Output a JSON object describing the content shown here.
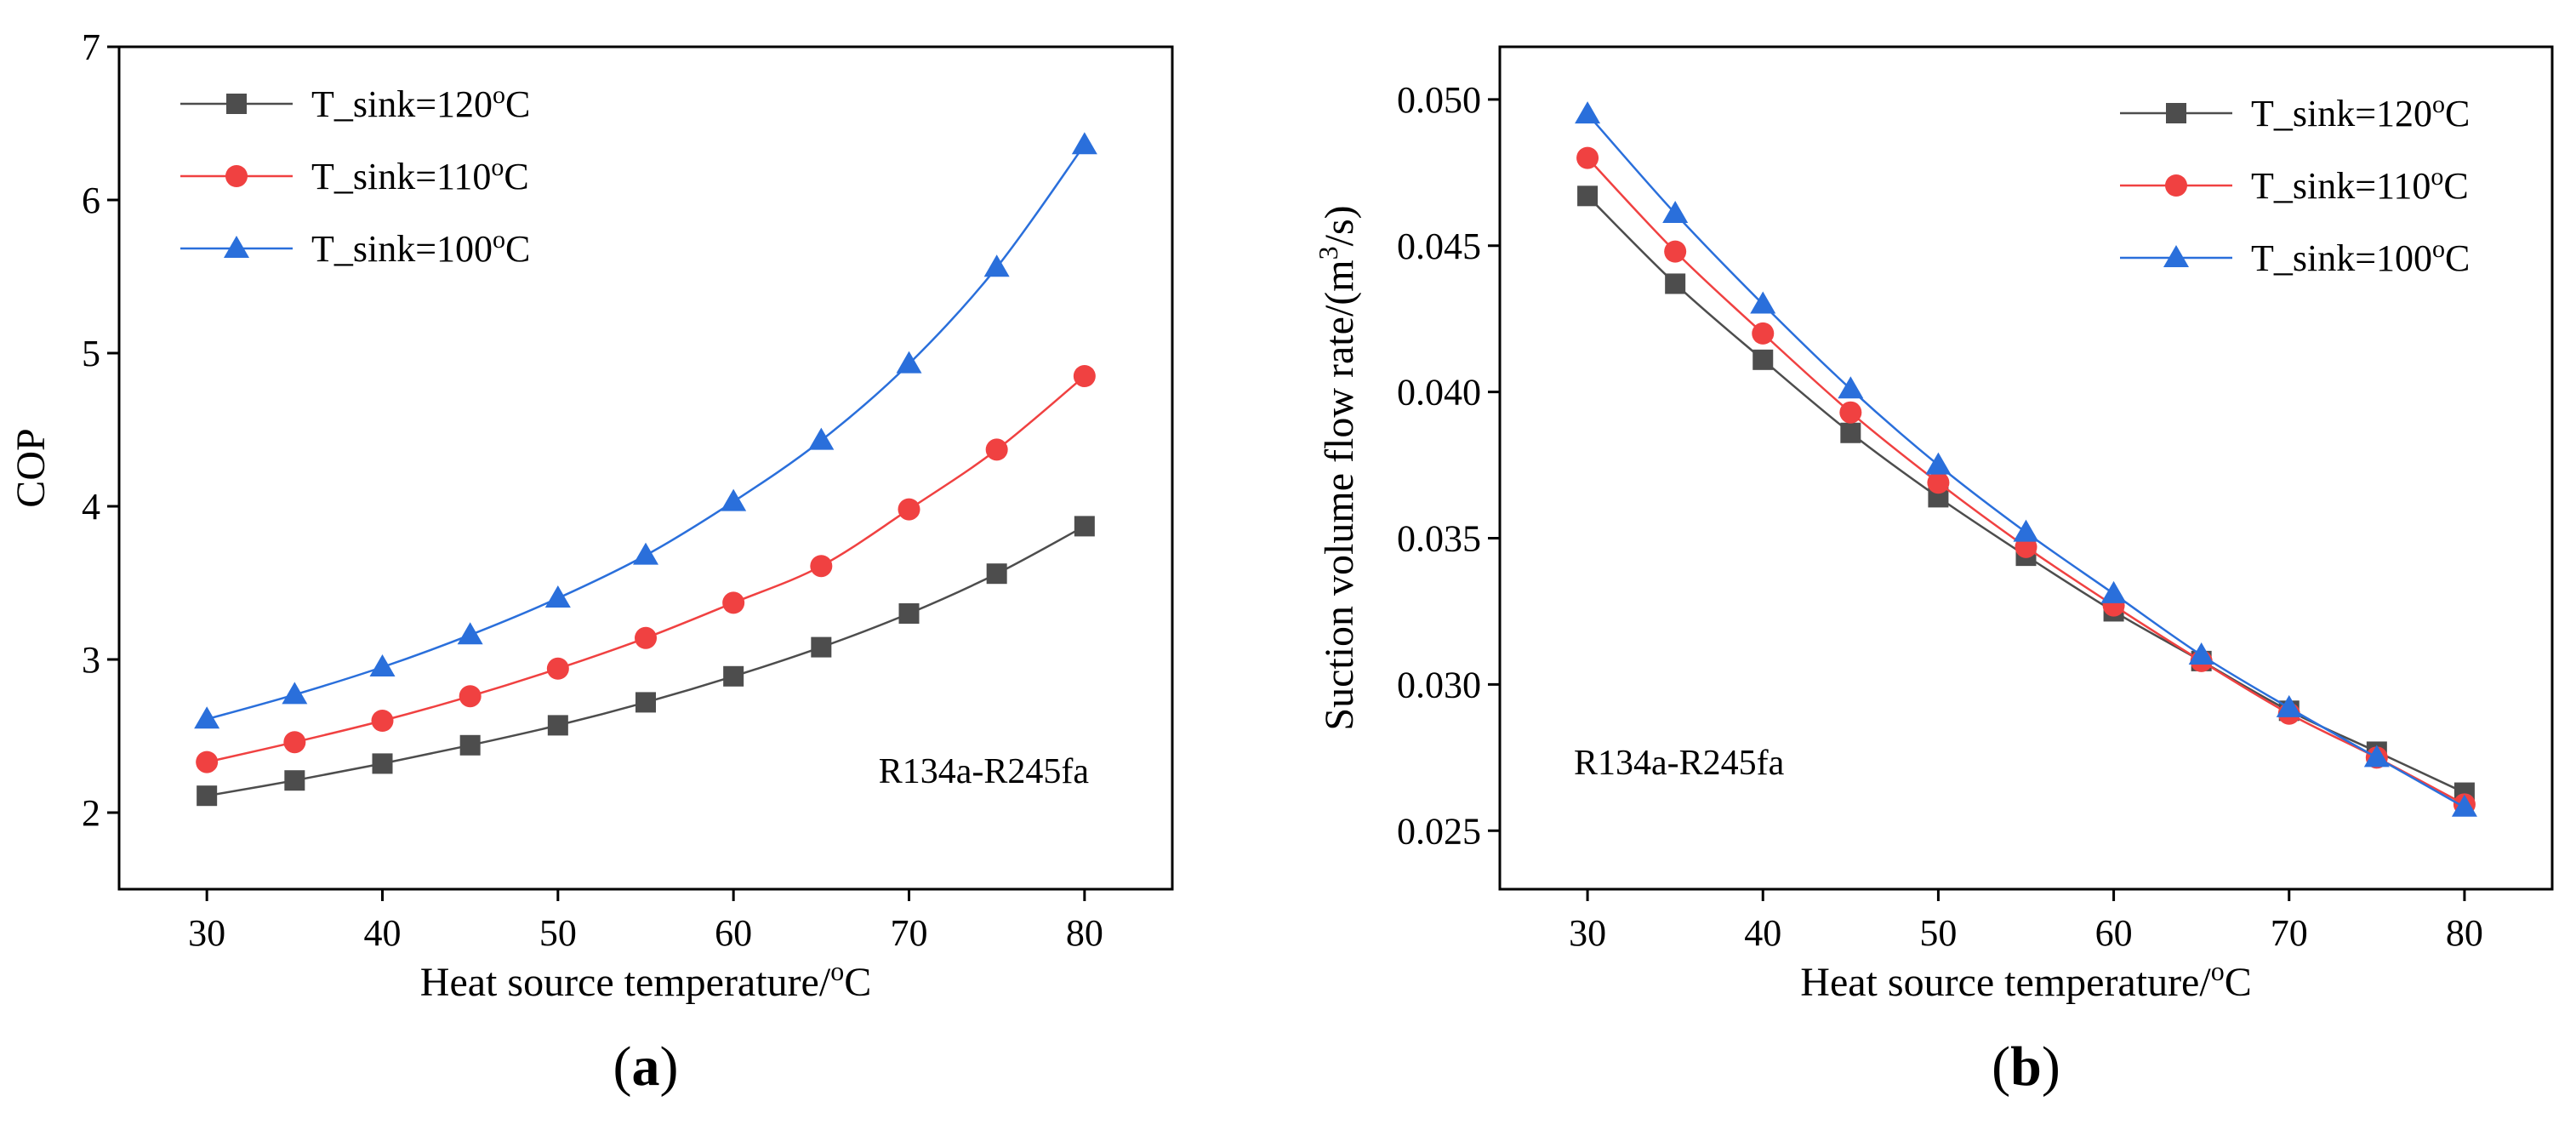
{
  "chart_data": [
    {
      "type": "line",
      "panel_label": "a",
      "title": "",
      "xlabel": "Heat source temperature/",
      "xlabel_unit_sup": "o",
      "xlabel_unit_tail": "C",
      "ylabel": "COP",
      "xlim": [
        25,
        85
      ],
      "ylim": [
        1.5,
        7
      ],
      "xticks": [
        30,
        40,
        50,
        60,
        70,
        80
      ],
      "xtick_labels": [
        "30",
        "40",
        "50",
        "60",
        "70",
        "80"
      ],
      "yticks": [
        2,
        3,
        4,
        5,
        6,
        7
      ],
      "ytick_labels": [
        "2",
        "3",
        "4",
        "5",
        "6",
        "7"
      ],
      "legend_position": "top-left",
      "annotation": "R134a-R245fa",
      "x": [
        30,
        35,
        40,
        45,
        50,
        55,
        60,
        65,
        70,
        75,
        80
      ],
      "series": [
        {
          "name": "T_sink=120",
          "name_sup": "o",
          "name_tail": "C",
          "marker": "square",
          "color": "#4d4d4d",
          "values": [
            2.11,
            2.21,
            2.32,
            2.44,
            2.57,
            2.72,
            2.89,
            3.08,
            3.3,
            3.56,
            3.87
          ]
        },
        {
          "name": "T_sink=110",
          "name_sup": "o",
          "name_tail": "C",
          "marker": "circle",
          "color": "#f04141",
          "values": [
            2.33,
            2.46,
            2.6,
            2.76,
            2.94,
            3.14,
            3.37,
            3.61,
            3.98,
            4.37,
            4.85
          ]
        },
        {
          "name": "T_sink=100",
          "name_sup": "o",
          "name_tail": "C",
          "marker": "triangle",
          "color": "#2a6fdb",
          "values": [
            2.61,
            2.77,
            2.95,
            3.16,
            3.4,
            3.68,
            4.03,
            4.43,
            4.93,
            5.56,
            6.36
          ]
        }
      ]
    },
    {
      "type": "line",
      "panel_label": "b",
      "title": "",
      "xlabel": "Heat source temperature/",
      "xlabel_unit_sup": "o",
      "xlabel_unit_tail": "C",
      "ylabel": "Suction volume flow rate/(m",
      "ylabel_sup": "3",
      "ylabel_tail": "/s)",
      "xlim": [
        25,
        85
      ],
      "ylim": [
        0.023,
        0.0518
      ],
      "xticks": [
        30,
        40,
        50,
        60,
        70,
        80
      ],
      "xtick_labels": [
        "30",
        "40",
        "50",
        "60",
        "70",
        "80"
      ],
      "yticks": [
        0.025,
        0.03,
        0.035,
        0.04,
        0.045,
        0.05
      ],
      "ytick_labels": [
        "0.025",
        "0.030",
        "0.035",
        "0.040",
        "0.045",
        "0.050"
      ],
      "legend_position": "top-right",
      "annotation": "R134a-R245fa",
      "x": [
        30,
        35,
        40,
        45,
        50,
        55,
        60,
        65,
        70,
        75,
        80
      ],
      "series": [
        {
          "name": "T_sink=120",
          "name_sup": "o",
          "name_tail": "C",
          "marker": "square",
          "color": "#4d4d4d",
          "values": [
            0.0467,
            0.0437,
            0.0411,
            0.0386,
            0.0364,
            0.0344,
            0.0325,
            0.0308,
            0.0291,
            0.0277,
            0.0263
          ]
        },
        {
          "name": "T_sink=110",
          "name_sup": "o",
          "name_tail": "C",
          "marker": "circle",
          "color": "#f04141",
          "values": [
            0.048,
            0.0448,
            0.042,
            0.0393,
            0.0369,
            0.0347,
            0.0327,
            0.0308,
            0.029,
            0.0275,
            0.0259
          ]
        },
        {
          "name": "T_sink=100",
          "name_sup": "o",
          "name_tail": "C",
          "marker": "triangle",
          "color": "#2a6fdb",
          "values": [
            0.0495,
            0.0461,
            0.043,
            0.0401,
            0.0375,
            0.0352,
            0.0331,
            0.031,
            0.0292,
            0.0275,
            0.0258
          ]
        }
      ]
    }
  ]
}
